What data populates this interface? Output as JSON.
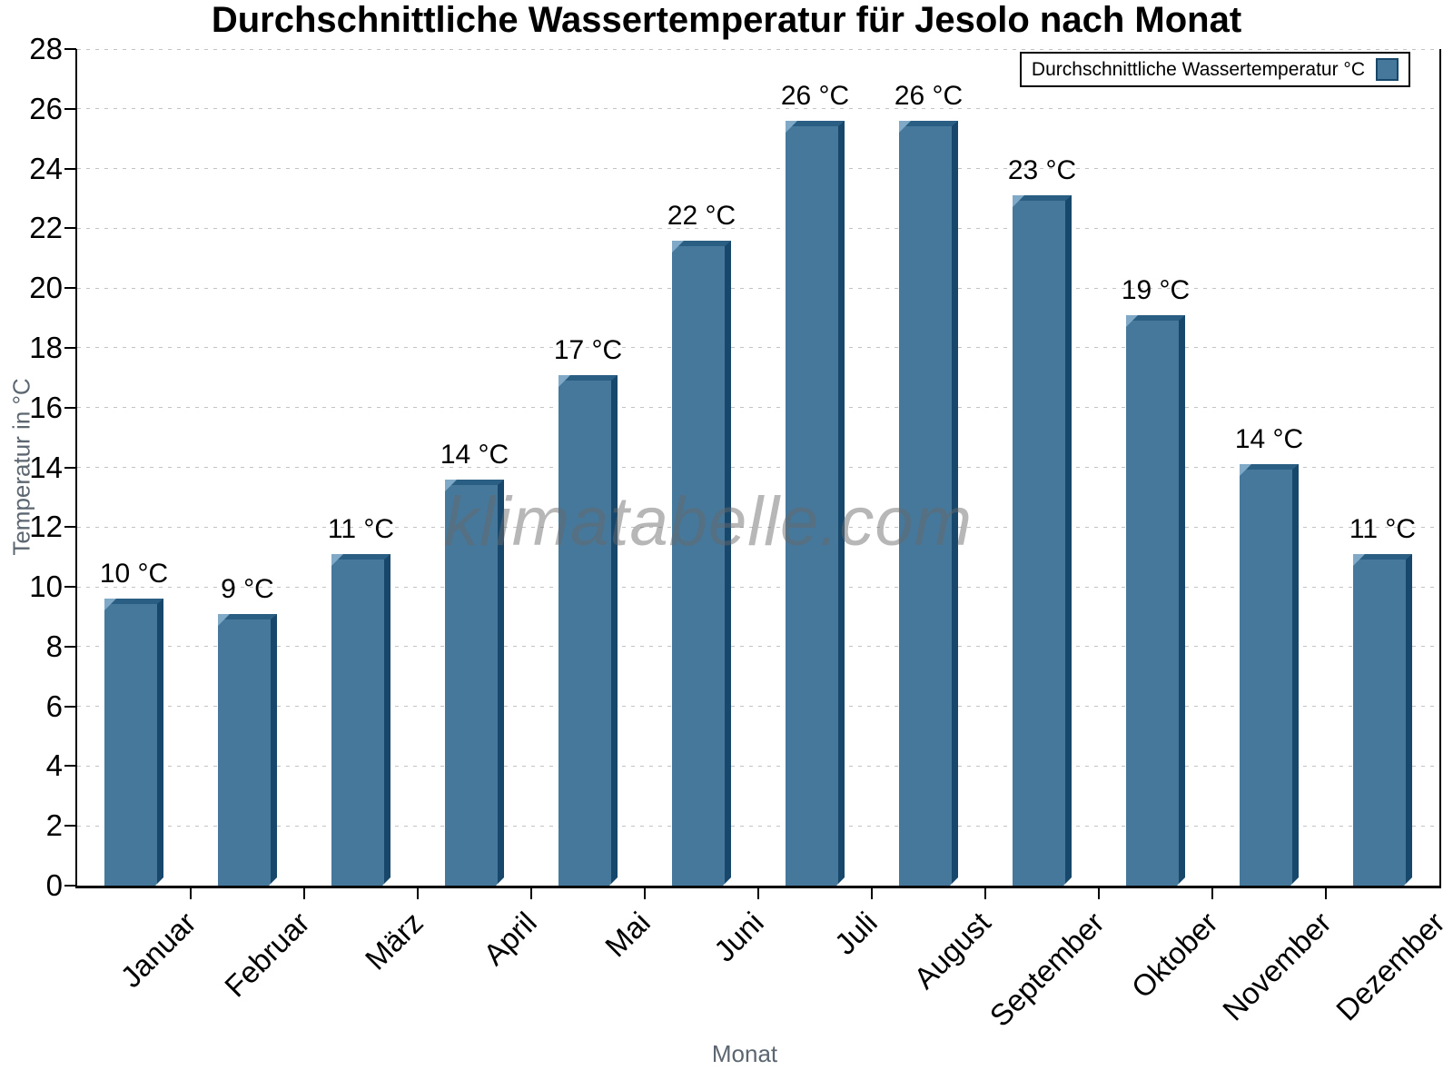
{
  "page": {
    "title": "Durchschnittliche Wassertemperatur für Jesolo nach Monat"
  },
  "legend": {
    "label": "Durchschnittliche Wassertemperatur °C"
  },
  "watermark": {
    "text": "klimatabelle.com"
  },
  "chart_data": {
    "type": "bar",
    "title": "Durchschnittliche Wassertemperatur für Jesolo nach Monat",
    "categories": [
      "Januar",
      "Februar",
      "März",
      "April",
      "Mai",
      "Juni",
      "Juli",
      "August",
      "September",
      "Oktober",
      "November",
      "Dezember"
    ],
    "values": [
      9.6,
      9.1,
      11.1,
      13.6,
      17.1,
      21.6,
      25.6,
      25.6,
      23.1,
      19.1,
      14.1,
      11.1
    ],
    "bar_labels": [
      "10 °C",
      "9 °C",
      "11 °C",
      "14 °C",
      "17 °C",
      "22 °C",
      "26 °C",
      "26 °C",
      "23 °C",
      "19 °C",
      "14 °C",
      "11 °C"
    ],
    "xlabel": "Monat",
    "ylabel": "Temperatur in °C",
    "ylim": [
      0,
      28
    ],
    "ytick_step": 2,
    "grid": "horizontal-dashed",
    "legend_entries": [
      "Durchschnittliche Wassertemperatur °C"
    ],
    "legend_position": "top-right",
    "watermark": "klimatabelle.com",
    "colors": {
      "bar_face": "#45789b",
      "bar_edge_dark": "#17486c",
      "bar_bevel_top": "#2a5f83",
      "bar_bevel_highlight": "#7fa9c6",
      "grid": "#c3c3c3",
      "axis": "#000000",
      "axis_title_text": "#5c6670",
      "watermark_text": "#9a9a9a",
      "background": "#ffffff"
    }
  }
}
